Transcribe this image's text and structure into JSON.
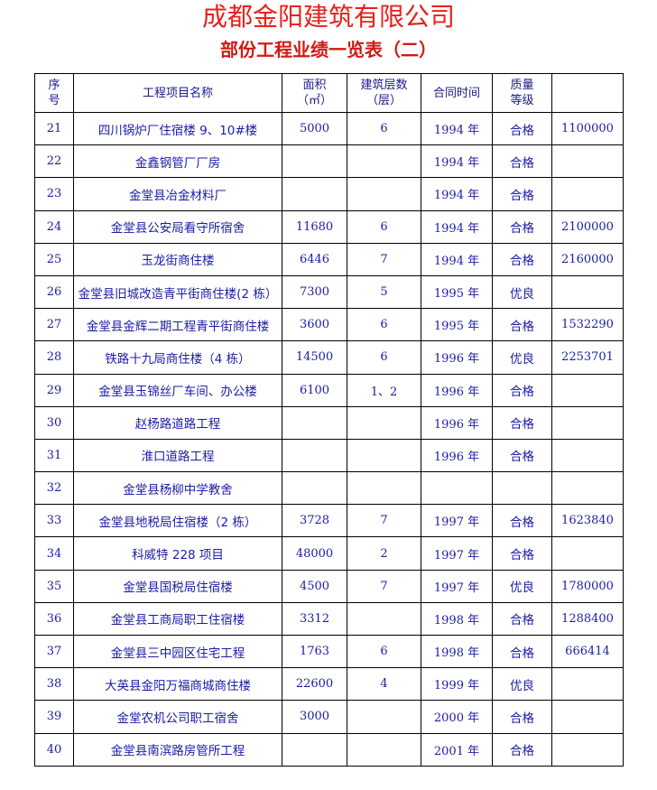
{
  "title": "成都金阳建筑有限公司",
  "subtitle": "部份工程业绩一览表（二）",
  "columns": [
    "序号",
    "工程项目名称",
    "面积（㎡）",
    "建筑层数（层）",
    "合同时间",
    "质量等级",
    ""
  ],
  "header_lines": {
    "no": [
      "序",
      "号"
    ],
    "name": [
      "工程项目名称"
    ],
    "area": [
      "面积",
      "（㎡）"
    ],
    "floors": [
      "建筑层数",
      "（层）"
    ],
    "date": [
      "合同时间"
    ],
    "quality": [
      "质量",
      "等级"
    ],
    "amount": [
      ""
    ]
  },
  "rows": [
    [
      "21",
      "四川锅炉厂住宿楼 9、10#楼",
      "5000",
      "6",
      "1994 年",
      "合格",
      "1100000"
    ],
    [
      "22",
      "金鑫钢管厂厂房",
      "",
      "",
      "1994 年",
      "合格",
      ""
    ],
    [
      "23",
      "金堂县冶金材料厂",
      "",
      "",
      "1994 年",
      "合格",
      ""
    ],
    [
      "24",
      "金堂县公安局看守所宿舍",
      "11680",
      "6",
      "1994 年",
      "合格",
      "2100000"
    ],
    [
      "25",
      "玉龙街商住楼",
      "6446",
      "7",
      "1994 年",
      "合格",
      "2160000"
    ],
    [
      "26",
      "金堂县旧城改造青平街商住楼(2 栋）",
      "7300",
      "5",
      "1995 年",
      "优良",
      ""
    ],
    [
      "27",
      "金堂县金辉二期工程青平街商住楼",
      "3600",
      "6",
      "1995 年",
      "合格",
      "1532290"
    ],
    [
      "28",
      "铁路十九局商住楼（4 栋）",
      "14500",
      "6",
      "1996 年",
      "优良",
      "2253701"
    ],
    [
      "29",
      "金堂县玉锦丝厂车间、办公楼",
      "6100",
      "1、2",
      "1996 年",
      "合格",
      ""
    ],
    [
      "30",
      "赵杨路道路工程",
      "",
      "",
      "1996 年",
      "合格",
      ""
    ],
    [
      "31",
      "淮口道路工程",
      "",
      "",
      "1996 年",
      "合格",
      ""
    ],
    [
      "32",
      "金堂县杨柳中学教舍",
      "",
      "",
      "",
      "",
      ""
    ],
    [
      "33",
      "金堂县地税局住宿楼（2 栋）",
      "3728",
      "7",
      "1997 年",
      "合格",
      "1623840"
    ],
    [
      "34",
      "科威特 228 项目",
      "48000",
      "2",
      "1997 年",
      "合格",
      ""
    ],
    [
      "35",
      "金堂县国税局住宿楼",
      "4500",
      "7",
      "1997 年",
      "优良",
      "1780000"
    ],
    [
      "36",
      "金堂县工商局职工住宿楼",
      "3312",
      "",
      "1998 年",
      "合格",
      "1288400"
    ],
    [
      "37",
      "金堂县三中园区住宅工程",
      "1763",
      "6",
      "1998 年",
      "合格",
      "666414"
    ],
    [
      "38",
      "大英县金阳万福商城商住楼",
      "22600",
      "4",
      "1999 年",
      "优良",
      ""
    ],
    [
      "39",
      "金堂农机公司职工宿舍",
      "3000",
      "",
      "2000 年",
      "合格",
      ""
    ],
    [
      "40",
      "金堂县南滨路房管所工程",
      "",
      "",
      "2001 年",
      "合格",
      ""
    ]
  ]
}
